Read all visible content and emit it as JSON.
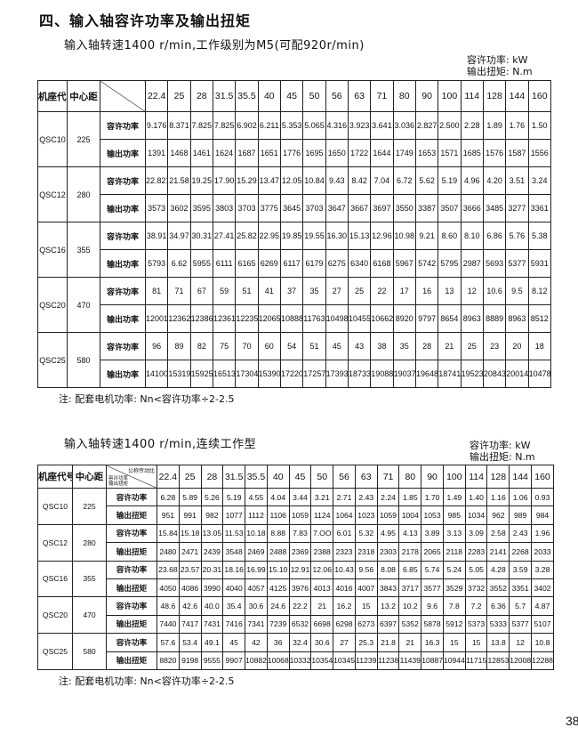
{
  "title": "四、输入轴容许功率及输出扭矩",
  "table1": {
    "subtitle": "输入轴转速1400 r/min,工作级别为M5(可配920r/min)",
    "units": [
      "容许功率: kW",
      "输出扭矩: N.m"
    ],
    "headers": {
      "model": "机座代号",
      "center": "中心距"
    },
    "ratios": [
      "22.4",
      "25",
      "28",
      "31.5",
      "35.5",
      "40",
      "45",
      "50",
      "56",
      "63",
      "71",
      "80",
      "90",
      "100",
      "114",
      "128",
      "144",
      "160"
    ],
    "groups": [
      {
        "model": "QSC10",
        "center": "225",
        "rows": [
          {
            "label": "容许功率",
            "values": [
              "9.176",
              "8.371",
              "7.825",
              "7.825",
              "6.902",
              "6.211",
              "5.353",
              "5.065",
              "4.316",
              "3.923",
              "3.641",
              "3.036",
              "2.827",
              "2.500",
              "2.28",
              "1.89",
              "1.76",
              "1.50"
            ]
          },
          {
            "label": "输出功率",
            "values": [
              "1391",
              "1468",
              "1461",
              "1624",
              "1687",
              "1651",
              "1776",
              "1695",
              "1650",
              "1722",
              "1644",
              "1749",
              "1653",
              "1571",
              "1685",
              "1576",
              "1587",
              "1556"
            ]
          }
        ]
      },
      {
        "model": "QSC12",
        "center": "280",
        "rows": [
          {
            "label": "容许功率",
            "values": [
              "22.821",
              "21.58",
              "19.25",
              "17.90",
              "15.29",
              "13.47",
              "12.05",
              "10.84",
              "9.43",
              "8.42",
              "7.04",
              "6.72",
              "5.62",
              "5.19",
              "4.96",
              "4.20",
              "3.51",
              "3.24"
            ]
          },
          {
            "label": "输出功率",
            "values": [
              "3573",
              "3602",
              "3595",
              "3803",
              "3703",
              "3775",
              "3645",
              "3703",
              "3647",
              "3667",
              "3697",
              "3550",
              "3387",
              "3507",
              "3666",
              "3485",
              "3277",
              "3361"
            ]
          }
        ]
      },
      {
        "model": "QSC16",
        "center": "355",
        "rows": [
          {
            "label": "容许功率",
            "values": [
              "38.91",
              "34.97",
              "30.31",
              "27.41",
              "25.82",
              "22.95",
              "19.85",
              "19.55",
              "16.30",
              "15.13",
              "12.96",
              "10.98",
              "9.21",
              "8.60",
              "8.10",
              "6.86",
              "5.76",
              "5.38"
            ]
          },
          {
            "label": "输出功率",
            "values": [
              "5793",
              "6.62",
              "5955",
              "6111",
              "6165",
              "6269",
              "6117",
              "6179",
              "6275",
              "6340",
              "6168",
              "5967",
              "5742",
              "5795",
              "2987",
              "5693",
              "5377",
              "5931"
            ]
          }
        ]
      },
      {
        "model": "QSC20",
        "center": "470",
        "rows": [
          {
            "label": "容许功率",
            "values": [
              "81",
              "71",
              "67",
              "59",
              "51",
              "41",
              "37",
              "35",
              "27",
              "25",
              "22",
              "17",
              "16",
              "13",
              "12",
              "10.6",
              "9.5",
              "8.12"
            ]
          },
          {
            "label": "输出功率",
            "values": [
              "12001",
              "12362",
              "12386",
              "12361",
              "12235",
              "12065",
              "10888",
              "11763",
              "10498",
              "10455",
              "10662",
              "8920",
              "9797",
              "8654",
              "8963",
              "8889",
              "8963",
              "8512"
            ]
          }
        ]
      },
      {
        "model": "QSC25",
        "center": "580",
        "rows": [
          {
            "label": "容许功率",
            "values": [
              "96",
              "89",
              "82",
              "75",
              "70",
              "60",
              "54",
              "51",
              "45",
              "43",
              "38",
              "35",
              "28",
              "21",
              "25",
              "23",
              "20",
              "18"
            ]
          },
          {
            "label": "输出功率",
            "values": [
              "14100",
              "15319",
              "15925",
              "16513",
              "17304",
              "15390",
              "17220",
              "17257",
              "17393",
              "18733",
              "19088",
              "19037",
              "19648",
              "18741",
              "19523",
              "20843",
              "20014",
              "10478"
            ]
          }
        ]
      }
    ],
    "note": "注:  配套电机功率:  Nn<容许功率÷2-2.5"
  },
  "table2": {
    "subtitle": "输入轴转速1400 r/min,连续工作型",
    "units": [
      "容许功率: kW",
      "输出扭矩: N.m"
    ],
    "headers": {
      "model": "机座代号",
      "center": "中心距",
      "diag_top": "公称传动比",
      "diag_bottom": [
        "容许功率",
        "输出扭矩"
      ]
    },
    "ratios": [
      "22.4",
      "25",
      "28",
      "31.5",
      "35.5",
      "40",
      "45",
      "50",
      "56",
      "63",
      "71",
      "80",
      "90",
      "100",
      "114",
      "128",
      "144",
      "160"
    ],
    "groups": [
      {
        "model": "QSC10",
        "center": "225",
        "rows": [
          {
            "label": "容许功率",
            "values": [
              "6.28",
              "5.89",
              "5.26",
              "5.19",
              "4.55",
              "4.04",
              "3.44",
              "3.21",
              "2.71",
              "2.43",
              "2.24",
              "1.85",
              "1.70",
              "1.49",
              "1.40",
              "1.16",
              "1.06",
              "0.93"
            ]
          },
          {
            "label": "输出扭矩",
            "values": [
              "951",
              "991",
              "982",
              "1077",
              "1112",
              "1106",
              "1059",
              "1124",
              "1064",
              "1023",
              "1059",
              "1004",
              "1053",
              "985",
              "1034",
              "962",
              "989",
              "984"
            ]
          }
        ]
      },
      {
        "model": "QSC12",
        "center": "280",
        "rows": [
          {
            "label": "容许功率",
            "values": [
              "15.84",
              "15.18",
              "13.05",
              "11.53",
              "10.18",
              "8.88",
              "7.83",
              "7.OO",
              "6.01",
              "5.32",
              "4.95",
              "4.13",
              "3.89",
              "3.13",
              "3.09",
              "2.58",
              "2.43",
              "1.96"
            ]
          },
          {
            "label": "输出扭矩",
            "values": [
              "2480",
              "2471",
              "2439",
              "3548",
              "2469",
              "2488",
              "2369",
              "2388",
              "2323",
              "2318",
              "2303",
              "2178",
              "2065",
              "2118",
              "2283",
              "2141",
              "2268",
              "2033"
            ]
          }
        ]
      },
      {
        "model": "QSC16",
        "center": "355",
        "rows": [
          {
            "label": "容许功率",
            "values": [
              "23.68",
              "23.57",
              "20.31",
              "18.16",
              "16.99",
              "15.10",
              "12.91",
              "12.06",
              "10.43",
              "9.56",
              "8.08",
              "6.85",
              "5.74",
              "5.24",
              "5.05",
              "4.28",
              "3.59",
              "3.28"
            ]
          },
          {
            "label": "输出扭矩",
            "values": [
              "4050",
              "4086",
              "3990",
              "4040",
              "4057",
              "4125",
              "3976",
              "4013",
              "4016",
              "4007",
              "3843",
              "3717",
              "3577",
              "3529",
              "3732",
              "3552",
              "3351",
              "3402"
            ]
          }
        ]
      },
      {
        "model": "QSC20",
        "center": "470",
        "rows": [
          {
            "label": "容许功率",
            "values": [
              "48.6",
              "42.6",
              "40.0",
              "35.4",
              "30.6",
              "24.6",
              "22.2",
              "21",
              "16.2",
              "15",
              "13.2",
              "10.2",
              "9.6",
              "7.8",
              "7.2",
              "6.36",
              "5.7",
              "4.87"
            ]
          },
          {
            "label": "输出扭矩",
            "values": [
              "7440",
              "7417",
              "7431",
              "7416",
              "7341",
              "7239",
              "6532",
              "6698",
              "6298",
              "6273",
              "6397",
              "5352",
              "5878",
              "5912",
              "5373",
              "5333",
              "5377",
              "5107"
            ]
          }
        ]
      },
      {
        "model": "QSC25",
        "center": "580",
        "rows": [
          {
            "label": "容许功率",
            "values": [
              "57.6",
              "53.4",
              "49.1",
              "45",
              "42",
              "36",
              "32.4",
              "30.6",
              "27",
              "25.3",
              "21.8",
              "21",
              "16.3",
              "15",
              "15",
              "13.8",
              "12",
              "10.8"
            ]
          },
          {
            "label": "输出扭矩",
            "values": [
              "8820",
              "9198",
              "9555",
              "9907",
              "10882",
              "10068",
              "10332",
              "10354",
              "10345",
              "11239",
              "11238",
              "11439",
              "10887",
              "10944",
              "11715",
              "12853",
              "12008",
              "12288"
            ]
          }
        ]
      }
    ],
    "note": "注:  配套电机功率:  Nn<容许功率÷2-2.5"
  },
  "page_number": "38"
}
